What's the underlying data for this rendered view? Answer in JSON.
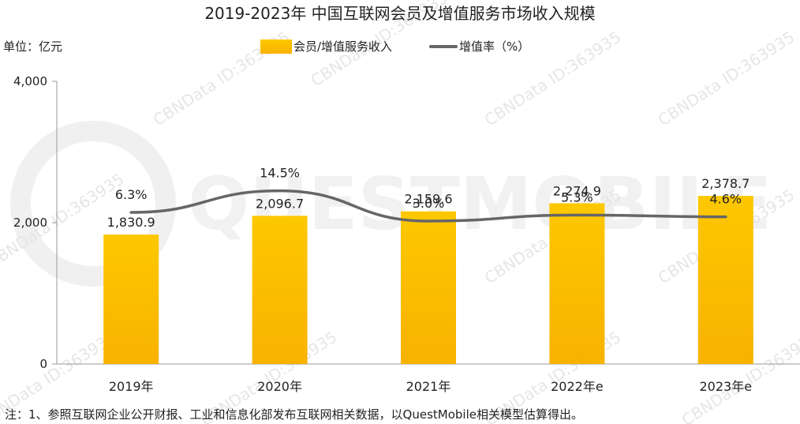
{
  "title": "2019-2023年 中国互联网会员及增值服务市场收入规模",
  "unit_label": "单位：亿元",
  "note": "注：1、参照互联网企业公开财报、工业和信息化部发布互联网相关数据，以QuestMobile相关模型估算得出。",
  "watermark": {
    "id_text": "CBNData ID:363935",
    "logo": "QUESTMOBILE"
  },
  "colors": {
    "bar_top": "#FDC800",
    "bar_bottom": "#F8B200",
    "line": "#666666",
    "axis": "#999999"
  },
  "chart_data": {
    "type": "bar",
    "categories": [
      "2019年",
      "2020年",
      "2021年",
      "2022年e",
      "2023年e"
    ],
    "series": [
      {
        "name": "会员/增值服务收入",
        "type": "bar",
        "values": [
          1830.9,
          2096.7,
          2159.6,
          2274.9,
          2378.7
        ],
        "labels": [
          "1,830.9",
          "2,096.7",
          "2,159.6",
          "2,274.9",
          "2,378.7"
        ]
      },
      {
        "name": "增值率（%）",
        "type": "line",
        "values": [
          6.3,
          14.5,
          3.0,
          5.3,
          4.6
        ],
        "labels": [
          "6.3%",
          "14.5%",
          "3.0%",
          "5.3%",
          "4.6%"
        ]
      }
    ],
    "ylim": [
      0,
      4000
    ],
    "yticks": [
      0,
      2000,
      4000
    ],
    "ytick_labels": [
      "0",
      "2,000",
      "4,000"
    ],
    "legend": "top-center",
    "grid": false
  }
}
